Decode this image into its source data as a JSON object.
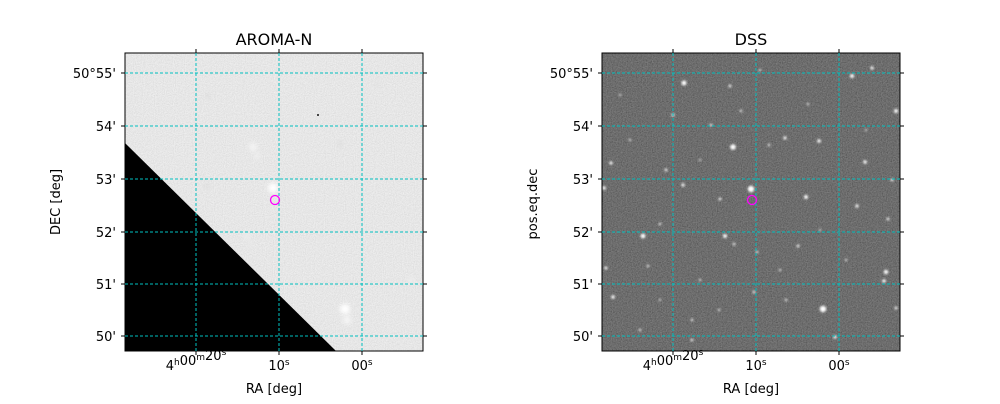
{
  "panels": [
    {
      "title": "AROMA-N",
      "xlabel": "RA [deg]",
      "ylabel": "DEC [deg]",
      "dec_ticks": [
        "50°55'",
        "54'",
        "53'",
        "52'",
        "51'",
        "50'"
      ],
      "ra_ticks": [
        "4h00m20s",
        "10s",
        "00s"
      ],
      "image_style": "grey-background-with-black-corner",
      "marker_color": "#ff00ff",
      "grid_color": "#00bfbf"
    },
    {
      "title": "DSS",
      "xlabel": "RA [deg]",
      "ylabel": "pos.eq.dec",
      "dec_ticks": [
        "50°55'",
        "54'",
        "53'",
        "52'",
        "51'",
        "50'"
      ],
      "ra_ticks": [
        "4h00m20s",
        "10s",
        "00s"
      ],
      "image_style": "dark-starfield",
      "marker_color": "#ff00ff",
      "grid_color": "#00bfbf"
    }
  ]
}
